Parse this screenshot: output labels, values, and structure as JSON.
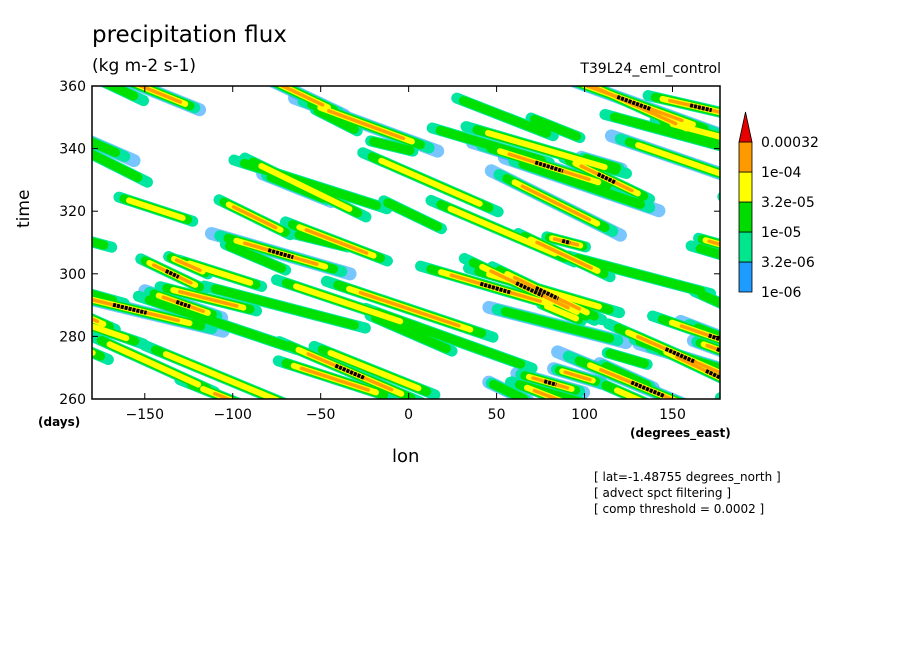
{
  "chart_data": {
    "type": "heatmap",
    "title": "precipitation flux",
    "units": "(kg m-2 s-1)",
    "run_name": "T39L24_eml_control",
    "xlabel": "lon",
    "xunit": "(degrees_east)",
    "ylabel": "time",
    "yunit": "(days)",
    "xlim": [
      -180,
      177
    ],
    "ylim": [
      260,
      360
    ],
    "x_ticks": [
      -150,
      -100,
      -50,
      0,
      50,
      100,
      150
    ],
    "y_ticks": [
      260,
      280,
      300,
      320,
      340,
      360
    ],
    "contour_levels": [
      "1e-06",
      "3.2e-06",
      "1e-05",
      "3.2e-05",
      "1e-04",
      "0.00032"
    ],
    "level_colors": [
      "#1e9bff",
      "#00e68c",
      "#00dc00",
      "#ffff00",
      "#ff9900",
      "#e60000"
    ],
    "notes": [
      "[ lat=-1.48755 degrees_north ]",
      "[ advect spct filtering ]",
      "[ comp threshold = 0.0002 ]"
    ]
  },
  "colors": {
    "band_high": "#ffa000",
    "band_mid": "#ffff00",
    "band_low": "#00e000",
    "band_faint": "#00e6a0",
    "band_min": "#20a0ff",
    "core": "#000000",
    "frame": "#000000"
  }
}
